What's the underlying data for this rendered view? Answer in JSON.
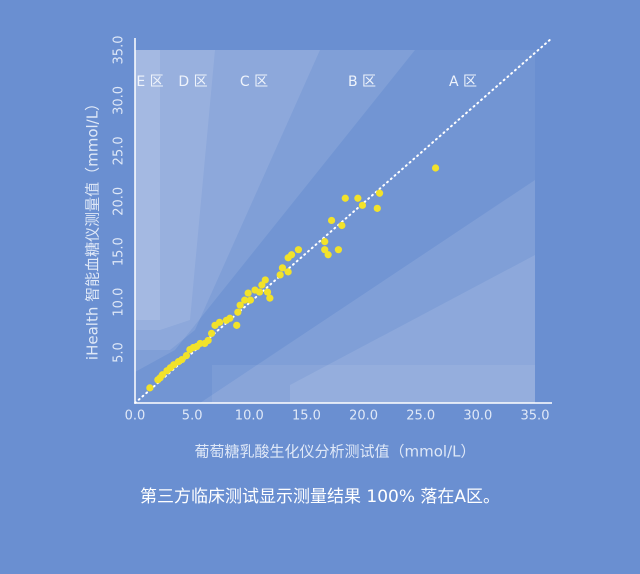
{
  "chart_data": {
    "type": "scatter",
    "xlabel": "葡萄糖乳酸生化仪分析测试值（mmol/L）",
    "ylabel": "iHealth 智能血糖仪测量值（mmol/L）",
    "caption": "第三方临床测试显示测量结果 100% 落在A区。",
    "zone_labels": [
      "E 区",
      "D 区",
      "C 区",
      "B 区",
      "A 区"
    ],
    "color": "#f2e22a",
    "xlim": [
      0,
      35
    ],
    "ylim": [
      0,
      35
    ],
    "xticks": [
      {
        "value": 0,
        "label": "0.0"
      },
      {
        "value": 5,
        "label": "5.0"
      },
      {
        "value": 10,
        "label": "10.0"
      },
      {
        "value": 15,
        "label": "15.0"
      },
      {
        "value": 20,
        "label": "20.0"
      },
      {
        "value": 25,
        "label": "25.0"
      },
      {
        "value": 30,
        "label": "30.0"
      },
      {
        "value": 35,
        "label": "35.0"
      }
    ],
    "yticks": [
      {
        "value": 5,
        "label": "5.0"
      },
      {
        "value": 10,
        "label": "10.0"
      },
      {
        "value": 15,
        "label": "15.0"
      },
      {
        "value": 20,
        "label": "20.0"
      },
      {
        "value": 25,
        "label": "25.0"
      },
      {
        "value": 30,
        "label": "30.0"
      },
      {
        "value": 35,
        "label": "35.0"
      }
    ],
    "x": [
      1.3,
      2.0,
      2.2,
      2.4,
      2.8,
      3.1,
      3.4,
      3.8,
      4.1,
      4.5,
      4.8,
      5.1,
      5.4,
      5.7,
      6.1,
      6.4,
      6.7,
      7.0,
      7.4,
      8.0,
      8.3,
      8.9,
      9.0,
      9.2,
      9.6,
      10.1,
      9.9,
      10.5,
      10.9,
      11.1,
      11.4,
      11.6,
      11.8,
      12.7,
      12.9,
      13.4,
      13.4,
      13.7,
      14.3,
      16.6,
      16.6,
      16.9,
      17.2,
      17.8,
      18.1,
      18.4,
      19.5,
      19.9,
      21.2,
      21.4,
      26.3
    ],
    "values": [
      1.5,
      2.3,
      2.5,
      2.8,
      3.2,
      3.5,
      3.8,
      4.1,
      4.3,
      4.7,
      5.3,
      5.5,
      5.6,
      5.9,
      5.9,
      6.2,
      6.9,
      7.7,
      8.0,
      8.2,
      8.4,
      7.7,
      9.0,
      9.7,
      10.2,
      10.2,
      10.9,
      11.2,
      11.0,
      11.7,
      12.2,
      11.0,
      10.4,
      12.7,
      13.4,
      13.0,
      14.4,
      14.7,
      15.2,
      15.2,
      16.0,
      14.7,
      18.1,
      15.2,
      17.6,
      20.3,
      20.3,
      19.6,
      19.3,
      20.8,
      23.3
    ]
  }
}
